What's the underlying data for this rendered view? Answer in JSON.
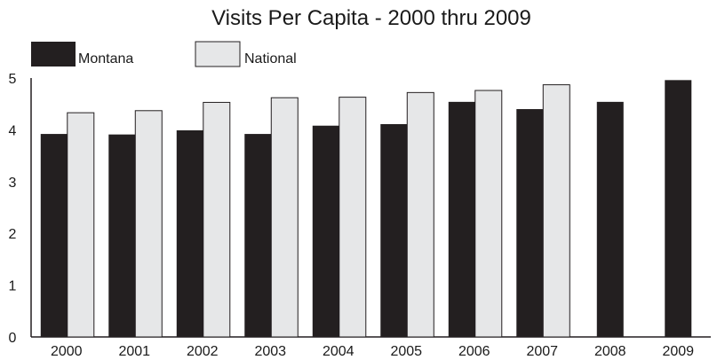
{
  "chart_data": {
    "type": "bar",
    "title": "Visits Per Capita - 2000 thru 2009",
    "xlabel": "",
    "ylabel": "",
    "categories": [
      "2000",
      "2001",
      "2002",
      "2003",
      "2004",
      "2005",
      "2006",
      "2007",
      "2008",
      "2009"
    ],
    "series": [
      {
        "name": "Montana",
        "color": "#231f20",
        "values": [
          3.92,
          3.91,
          3.99,
          3.92,
          4.08,
          4.11,
          4.54,
          4.4,
          4.54,
          4.96
        ]
      },
      {
        "name": "National",
        "color": "#e6e7e8",
        "values": [
          4.33,
          4.37,
          4.53,
          4.62,
          4.63,
          4.72,
          4.76,
          4.87,
          null,
          null
        ]
      }
    ],
    "ylim": [
      0,
      5
    ],
    "yticks": [
      "0",
      "1",
      "2",
      "3",
      "4",
      "5"
    ],
    "grid": false,
    "legend_position": "top-left"
  }
}
